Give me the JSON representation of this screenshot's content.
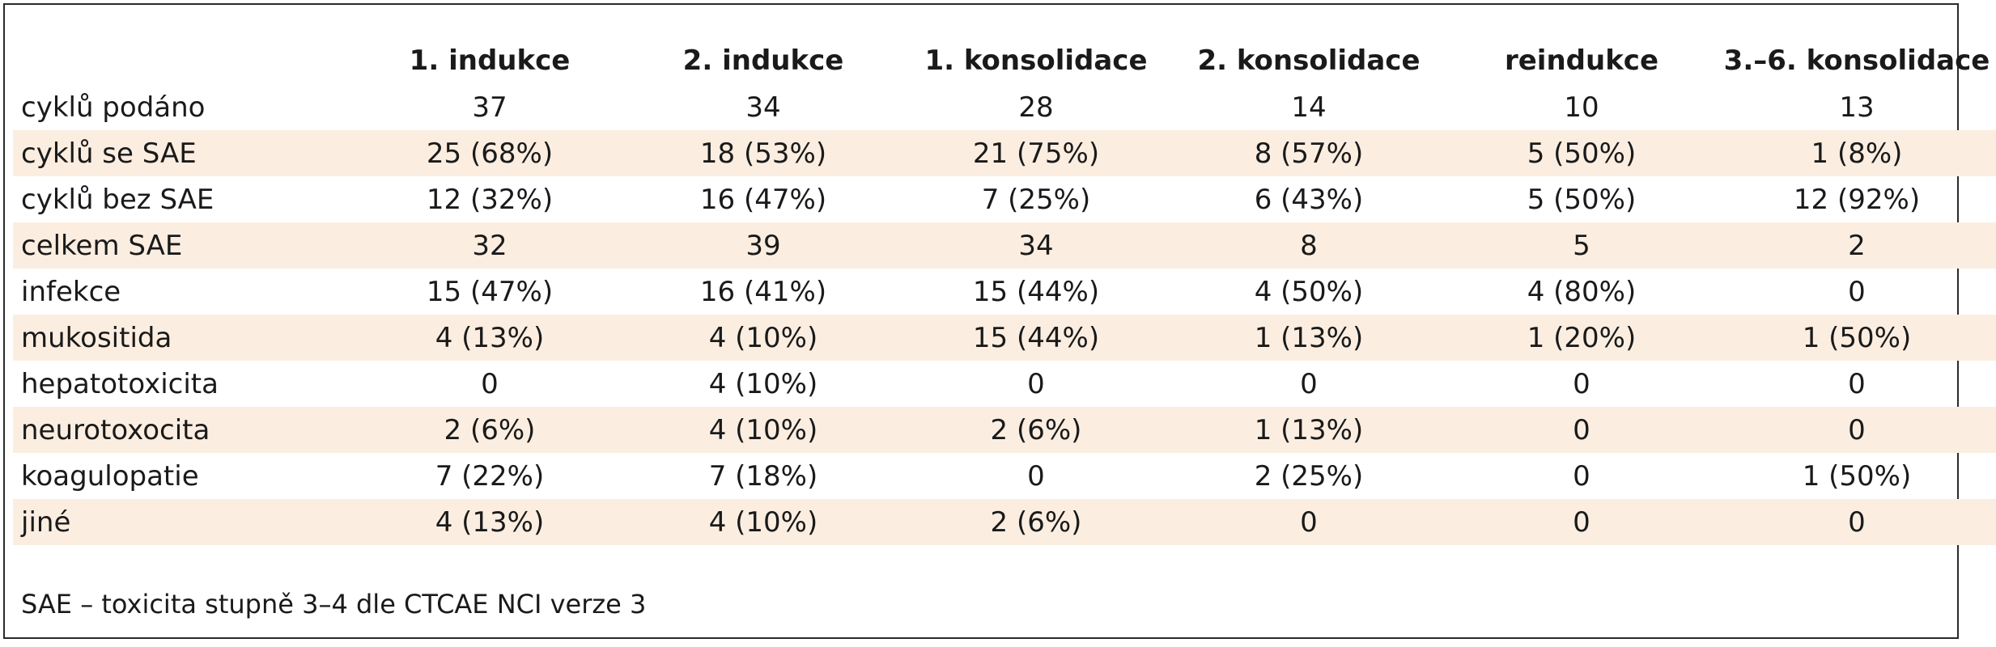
{
  "table": {
    "columns": [
      "",
      "1. indukce",
      "2. indukce",
      "1. konsolidace",
      "2. konsolidace",
      "reindukce",
      "3.–6. konsolidace"
    ],
    "rows": [
      {
        "label": "cyklů podáno",
        "values": [
          "37",
          "34",
          "28",
          "14",
          "10",
          "13"
        ]
      },
      {
        "label": "cyklů se SAE",
        "values": [
          "25 (68%)",
          "18 (53%)",
          "21 (75%)",
          "8 (57%)",
          "5 (50%)",
          "1 (8%)"
        ]
      },
      {
        "label": "cyklů bez SAE",
        "values": [
          "12 (32%)",
          "16 (47%)",
          "7 (25%)",
          "6 (43%)",
          "5 (50%)",
          "12 (92%)"
        ]
      },
      {
        "label": "celkem SAE",
        "values": [
          "32",
          "39",
          "34",
          "8",
          "5",
          "2"
        ]
      },
      {
        "label": "infekce",
        "values": [
          "15 (47%)",
          "16 (41%)",
          "15 (44%)",
          "4 (50%)",
          "4 (80%)",
          "0"
        ]
      },
      {
        "label": "mukositida",
        "values": [
          "4 (13%)",
          "4 (10%)",
          "15 (44%)",
          "1 (13%)",
          "1 (20%)",
          "1 (50%)"
        ]
      },
      {
        "label": "hepatotoxicita",
        "values": [
          "0",
          "4 (10%)",
          "0",
          "0",
          "0",
          "0"
        ]
      },
      {
        "label": "neurotoxocita",
        "values": [
          "2 (6%)",
          "4 (10%)",
          "2 (6%)",
          "1 (13%)",
          "0",
          "0"
        ]
      },
      {
        "label": "koagulopatie",
        "values": [
          "7 (22%)",
          "7 (18%)",
          "0",
          "2 (25%)",
          "0",
          "1 (50%)"
        ]
      },
      {
        "label": "jiné",
        "values": [
          "4 (13%)",
          "4 (10%)",
          "2 (6%)",
          "0",
          "0",
          "0"
        ]
      }
    ],
    "shaded_rows": [
      1,
      3,
      5,
      7,
      9
    ],
    "shade_color": "#fbeee1"
  },
  "footnote": "SAE – toxicita stupně 3–4 dle CTCAE NCI verze 3"
}
